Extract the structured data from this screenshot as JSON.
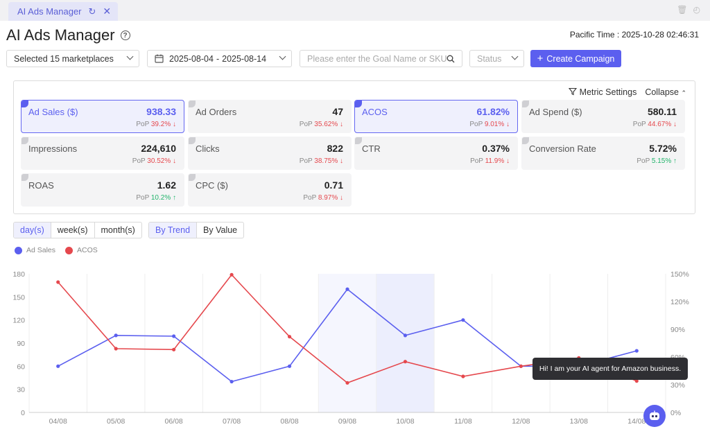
{
  "tab": {
    "label": "AI Ads Manager"
  },
  "header": {
    "title": "AI Ads Manager",
    "help_icon": "?",
    "pacific_time_label": "Pacific Time :",
    "pacific_time_value": "2025-10-28 02:46:31"
  },
  "filters": {
    "marketplaces": "Selected 15 marketplaces",
    "date_start": "2025-08-04",
    "date_sep": "-",
    "date_end": "2025-08-14",
    "search_placeholder": "Please enter the Goal Name or SKU",
    "status_placeholder": "Status",
    "create_label": "Create Campaign"
  },
  "panel": {
    "metric_settings": "Metric Settings",
    "collapse": "Collapse"
  },
  "metrics": [
    {
      "label": "Ad Sales ($)",
      "value": "938.33",
      "pop": "39.2%",
      "dir": "down",
      "selected": true
    },
    {
      "label": "Ad Orders",
      "value": "47",
      "pop": "35.62%",
      "dir": "down",
      "selected": false
    },
    {
      "label": "ACOS",
      "value": "61.82%",
      "pop": "9.01%",
      "dir": "down",
      "selected": true
    },
    {
      "label": "Ad Spend ($)",
      "value": "580.11",
      "pop": "44.67%",
      "dir": "down",
      "selected": false
    },
    {
      "label": "Impressions",
      "value": "224,610",
      "pop": "30.52%",
      "dir": "down",
      "selected": false
    },
    {
      "label": "Clicks",
      "value": "822",
      "pop": "38.75%",
      "dir": "down",
      "selected": false
    },
    {
      "label": "CTR",
      "value": "0.37%",
      "pop": "11.9%",
      "dir": "down",
      "selected": false
    },
    {
      "label": "Conversion Rate",
      "value": "5.72%",
      "pop": "5.15%",
      "dir": "up",
      "selected": false
    },
    {
      "label": "ROAS",
      "value": "1.62",
      "pop": "10.2%",
      "dir": "up",
      "selected": false
    },
    {
      "label": "CPC ($)",
      "value": "0.71",
      "pop": "8.97%",
      "dir": "down",
      "selected": false
    }
  ],
  "pop_label": "PoP",
  "granularity": [
    "day(s)",
    "week(s)",
    "month(s)"
  ],
  "view_mode": [
    "By Trend",
    "By Value"
  ],
  "colors": {
    "ad_sales": "#5b5fef",
    "acos": "#e5484d",
    "accent": "#5b5fef"
  },
  "chart_data": {
    "type": "line",
    "x": [
      "04/08",
      "05/08",
      "06/08",
      "07/08",
      "08/08",
      "09/08",
      "10/08",
      "11/08",
      "12/08",
      "13/08",
      "14/08"
    ],
    "series": [
      {
        "name": "Ad Sales",
        "axis": "left",
        "values": [
          60,
          100,
          99,
          40,
          60,
          160,
          100,
          120,
          60,
          60,
          80
        ]
      },
      {
        "name": "ACOS",
        "axis": "right",
        "values": [
          141,
          69,
          68,
          149,
          82,
          32,
          55,
          39,
          50,
          59,
          34
        ]
      }
    ],
    "yticks_left": [
      "0",
      "30",
      "60",
      "90",
      "120",
      "150",
      "180"
    ],
    "yticks_right": [
      "0%",
      "30%",
      "60%",
      "90%",
      "120%",
      "150%"
    ],
    "ylim_left": [
      0,
      180
    ],
    "ylim_right": [
      0,
      150
    ]
  },
  "assistant": {
    "tooltip": "Hi! I am your AI agent for Amazon business."
  }
}
